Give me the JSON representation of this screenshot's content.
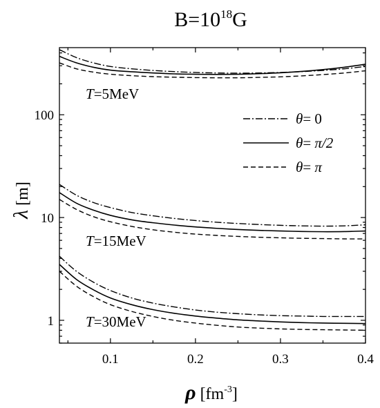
{
  "chart_data": {
    "type": "line",
    "title_base": "B=10",
    "title_exp": "18",
    "title_unit": "G",
    "xlabel_symbol": "ρ",
    "xlabel_unit_open": " [fm",
    "xlabel_unit_exp": "-3",
    "xlabel_unit_close": "]",
    "ylabel_symbol": "λ",
    "ylabel_unit": " [m]",
    "xlim": [
      0.04,
      0.4
    ],
    "ylim": [
      0.6,
      450
    ],
    "yscale": "log",
    "xticks": [
      0.1,
      0.2,
      0.3,
      0.4
    ],
    "xtick_labels": [
      "0.1",
      "0.2",
      "0.3",
      "0.4"
    ],
    "yticks": [
      1,
      10,
      100
    ],
    "ytick_labels": [
      "1",
      "10",
      "100"
    ],
    "legend": {
      "placement": "top-right",
      "entries": [
        {
          "prefix": "θ",
          "eq": "= ",
          "value": "0",
          "style": "dashdot"
        },
        {
          "prefix": "θ",
          "eq": "= ",
          "value": "π/2",
          "style": "solid"
        },
        {
          "prefix": "θ",
          "eq": "= ",
          "value": "π",
          "style": "dashed"
        }
      ]
    },
    "annotations": [
      {
        "var": "T",
        "text": "=5MeV"
      },
      {
        "var": "T",
        "text": "=15MeV"
      },
      {
        "var": "T",
        "text": "=30MeV"
      }
    ],
    "x": [
      0.04,
      0.06,
      0.08,
      0.1,
      0.125,
      0.15,
      0.175,
      0.2,
      0.225,
      0.25,
      0.275,
      0.3,
      0.325,
      0.35,
      0.375,
      0.4
    ],
    "series": [
      {
        "group": "T=5MeV",
        "style": "dashdot",
        "values": [
          430,
          360,
          320,
          295,
          280,
          270,
          263,
          258,
          255,
          254,
          255,
          258,
          263,
          270,
          280,
          295
        ]
      },
      {
        "group": "T=5MeV",
        "style": "solid",
        "values": [
          370,
          320,
          290,
          272,
          262,
          255,
          250,
          248,
          247,
          248,
          251,
          256,
          264,
          275,
          290,
          310
        ]
      },
      {
        "group": "T=5MeV",
        "style": "dashed",
        "values": [
          320,
          280,
          260,
          248,
          240,
          235,
          232,
          230,
          229,
          229,
          231,
          234,
          239,
          246,
          255,
          268
        ]
      },
      {
        "group": "T=15MeV",
        "style": "dashdot",
        "values": [
          21,
          16.5,
          14,
          12.5,
          11.2,
          10.4,
          9.8,
          9.35,
          9.0,
          8.75,
          8.55,
          8.4,
          8.3,
          8.25,
          8.3,
          8.5
        ]
      },
      {
        "group": "T=15MeV",
        "style": "solid",
        "values": [
          17.5,
          13.8,
          11.8,
          10.5,
          9.5,
          8.9,
          8.45,
          8.1,
          7.85,
          7.65,
          7.5,
          7.4,
          7.32,
          7.28,
          7.3,
          7.4
        ]
      },
      {
        "group": "T=15MeV",
        "style": "dashed",
        "values": [
          15,
          12,
          10.2,
          9.1,
          8.2,
          7.6,
          7.2,
          6.9,
          6.7,
          6.55,
          6.43,
          6.35,
          6.28,
          6.24,
          6.2,
          6.2
        ]
      },
      {
        "group": "T=30MeV",
        "style": "dashdot",
        "values": [
          4.2,
          3.0,
          2.35,
          1.95,
          1.65,
          1.47,
          1.35,
          1.26,
          1.2,
          1.16,
          1.13,
          1.11,
          1.1,
          1.09,
          1.09,
          1.09
        ]
      },
      {
        "group": "T=30MeV",
        "style": "solid",
        "values": [
          3.5,
          2.5,
          1.98,
          1.65,
          1.42,
          1.27,
          1.17,
          1.1,
          1.05,
          1.01,
          0.985,
          0.965,
          0.95,
          0.94,
          0.935,
          0.93
        ]
      },
      {
        "group": "T=30MeV",
        "style": "dashed",
        "values": [
          3.0,
          2.15,
          1.7,
          1.42,
          1.22,
          1.09,
          1.0,
          0.94,
          0.895,
          0.86,
          0.84,
          0.825,
          0.815,
          0.81,
          0.805,
          0.8
        ]
      }
    ]
  }
}
